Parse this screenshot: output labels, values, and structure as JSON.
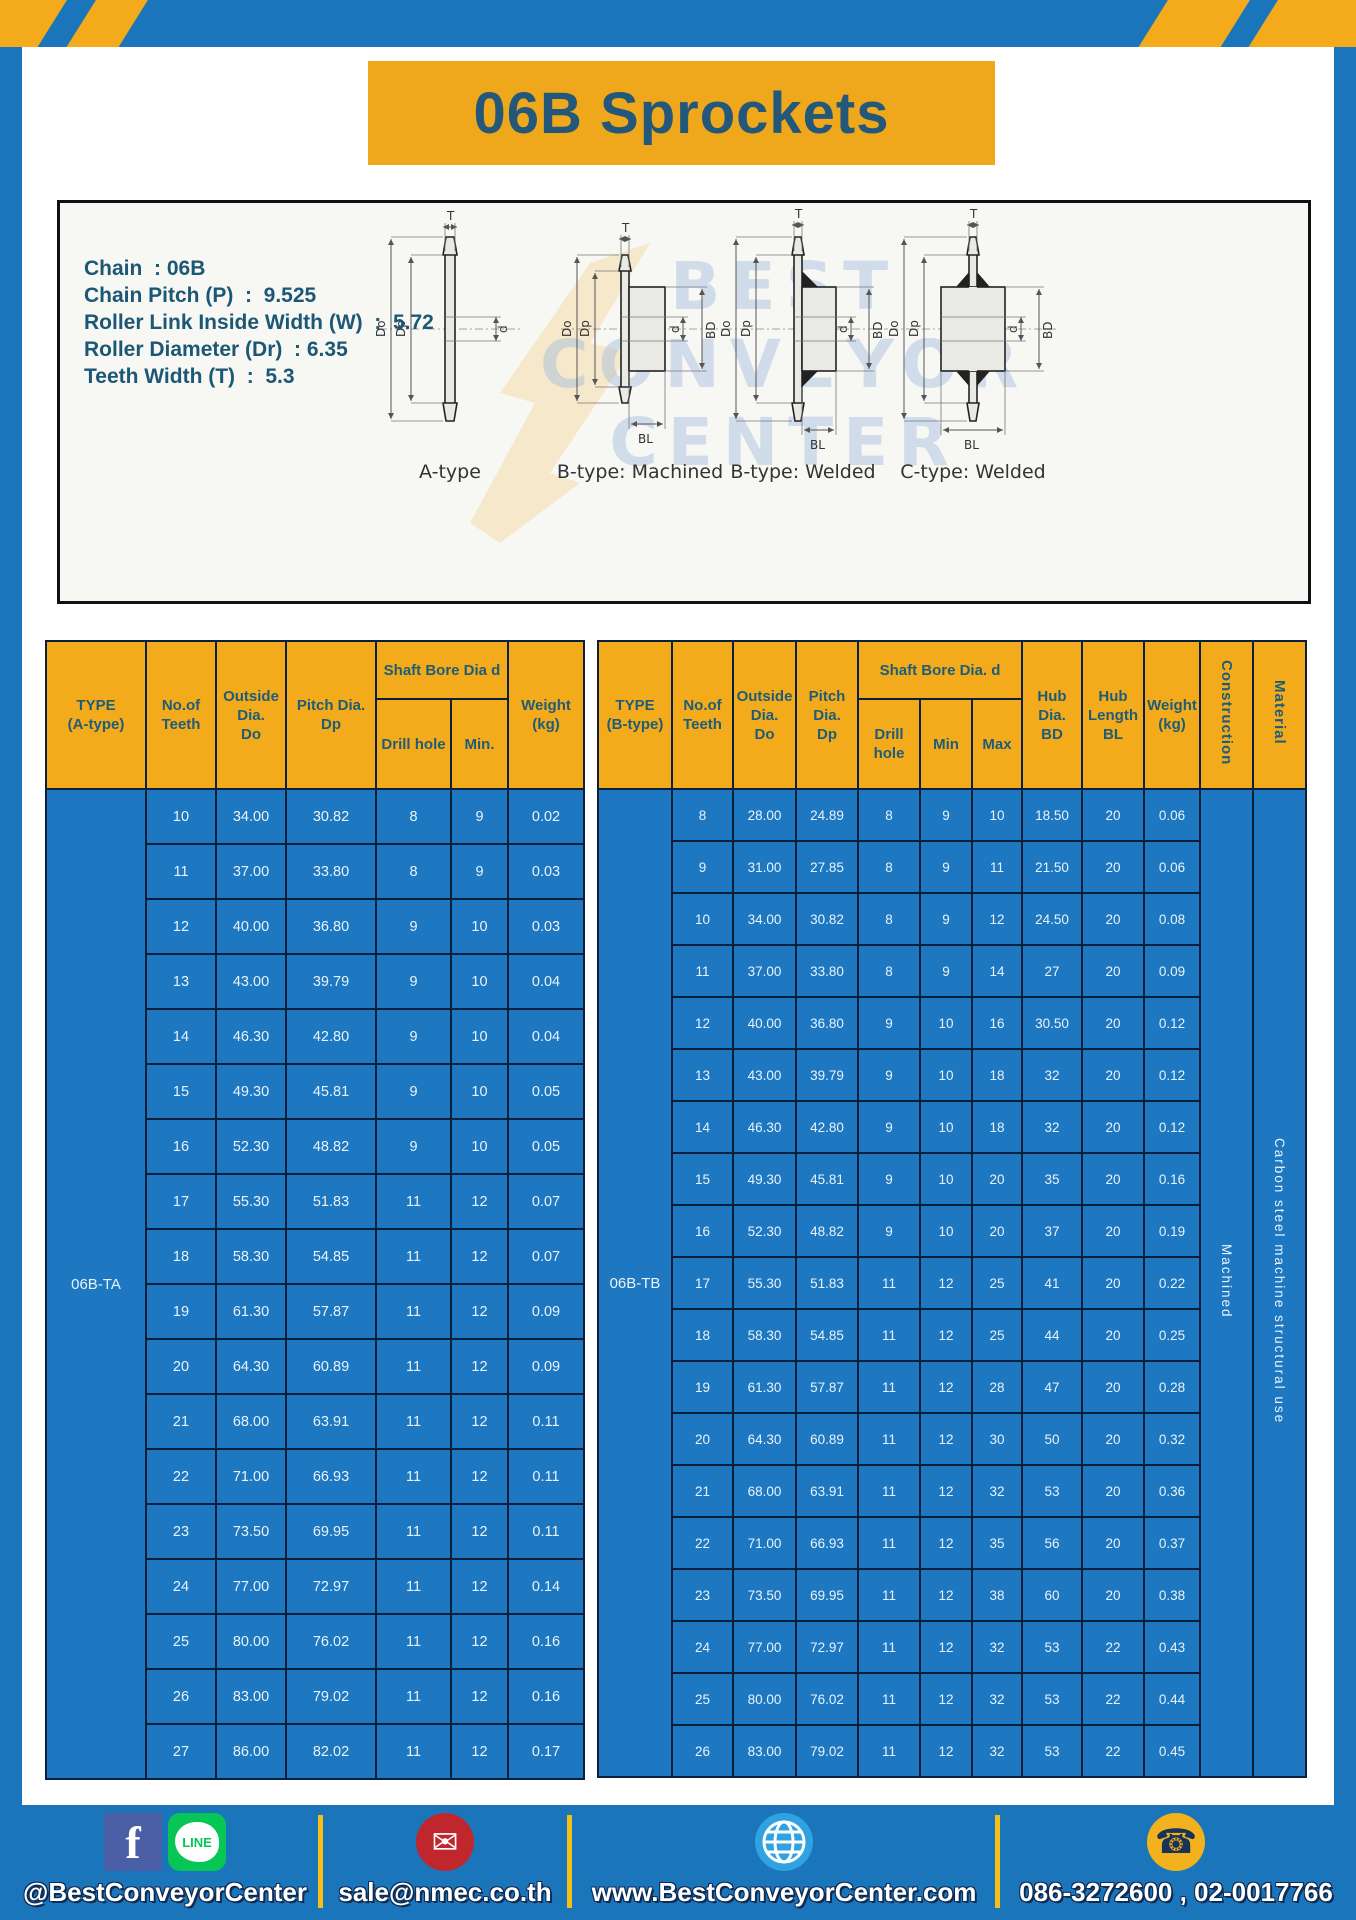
{
  "title": "06B Sprockets",
  "specs": [
    "Chain  : 06B",
    "Chain Pitch (P)  :  9.525",
    "Roller Link Inside Width (W)  :  5.72",
    "Roller Diameter (Dr)  : 6.35",
    "Teeth Width (T)  :  5.3"
  ],
  "watermark": {
    "lines": [
      "BEST",
      "CONVEYOR",
      "CENTER"
    ]
  },
  "dims": {
    "t": "T",
    "do": "Do",
    "dp": "Dp",
    "d": "d",
    "bd": "BD",
    "bl": "BL"
  },
  "drawings": [
    {
      "label": "A-type"
    },
    {
      "label": "B-type: Machined"
    },
    {
      "label": "B-type: Welded"
    },
    {
      "label": "C-type: Welded"
    }
  ],
  "table_a": {
    "type_label": "06B-TA",
    "headers": {
      "type": "TYPE\n(A-type)",
      "teeth": "No.of\nTeeth",
      "outside": "Outside\nDia.\nDo",
      "pitch": "Pitch Dia.\nDp",
      "shaft_bore": "Shaft Bore Dia d",
      "drill": "Drill hole",
      "min": "Min.",
      "weight": "Weight\n(kg)"
    },
    "rows": [
      [
        "10",
        "34.00",
        "30.82",
        "8",
        "9",
        "0.02"
      ],
      [
        "11",
        "37.00",
        "33.80",
        "8",
        "9",
        "0.03"
      ],
      [
        "12",
        "40.00",
        "36.80",
        "9",
        "10",
        "0.03"
      ],
      [
        "13",
        "43.00",
        "39.79",
        "9",
        "10",
        "0.04"
      ],
      [
        "14",
        "46.30",
        "42.80",
        "9",
        "10",
        "0.04"
      ],
      [
        "15",
        "49.30",
        "45.81",
        "9",
        "10",
        "0.05"
      ],
      [
        "16",
        "52.30",
        "48.82",
        "9",
        "10",
        "0.05"
      ],
      [
        "17",
        "55.30",
        "51.83",
        "11",
        "12",
        "0.07"
      ],
      [
        "18",
        "58.30",
        "54.85",
        "11",
        "12",
        "0.07"
      ],
      [
        "19",
        "61.30",
        "57.87",
        "11",
        "12",
        "0.09"
      ],
      [
        "20",
        "64.30",
        "60.89",
        "11",
        "12",
        "0.09"
      ],
      [
        "21",
        "68.00",
        "63.91",
        "11",
        "12",
        "0.11"
      ],
      [
        "22",
        "71.00",
        "66.93",
        "11",
        "12",
        "0.11"
      ],
      [
        "23",
        "73.50",
        "69.95",
        "11",
        "12",
        "0.11"
      ],
      [
        "24",
        "77.00",
        "72.97",
        "11",
        "12",
        "0.14"
      ],
      [
        "25",
        "80.00",
        "76.02",
        "11",
        "12",
        "0.16"
      ],
      [
        "26",
        "83.00",
        "79.02",
        "11",
        "12",
        "0.16"
      ],
      [
        "27",
        "86.00",
        "82.02",
        "11",
        "12",
        "0.17"
      ]
    ]
  },
  "table_b": {
    "type_label": "06B-TB",
    "headers": {
      "type": "TYPE\n(B-type)",
      "teeth": "No.of\nTeeth",
      "outside": "Outside\nDia.\nDo",
      "pitch": "Pitch\nDia.\nDp",
      "shaft_bore": "Shaft Bore Dia.  d",
      "drill": "Drill hole",
      "min": "Min",
      "max": "Max",
      "hub_dia": "Hub\nDia.\nBD",
      "hub_len": "Hub\nLength\nBL",
      "weight": "Weight\n(kg)",
      "construction": "Construction",
      "material": "Material"
    },
    "construction_value": "Machined",
    "material_value": "Carbon  steel  machine  structural  use",
    "rows": [
      [
        "8",
        "28.00",
        "24.89",
        "8",
        "9",
        "10",
        "18.50",
        "20",
        "0.06"
      ],
      [
        "9",
        "31.00",
        "27.85",
        "8",
        "9",
        "11",
        "21.50",
        "20",
        "0.06"
      ],
      [
        "10",
        "34.00",
        "30.82",
        "8",
        "9",
        "12",
        "24.50",
        "20",
        "0.08"
      ],
      [
        "11",
        "37.00",
        "33.80",
        "8",
        "9",
        "14",
        "27",
        "20",
        "0.09"
      ],
      [
        "12",
        "40.00",
        "36.80",
        "9",
        "10",
        "16",
        "30.50",
        "20",
        "0.12"
      ],
      [
        "13",
        "43.00",
        "39.79",
        "9",
        "10",
        "18",
        "32",
        "20",
        "0.12"
      ],
      [
        "14",
        "46.30",
        "42.80",
        "9",
        "10",
        "18",
        "32",
        "20",
        "0.12"
      ],
      [
        "15",
        "49.30",
        "45.81",
        "9",
        "10",
        "20",
        "35",
        "20",
        "0.16"
      ],
      [
        "16",
        "52.30",
        "48.82",
        "9",
        "10",
        "20",
        "37",
        "20",
        "0.19"
      ],
      [
        "17",
        "55.30",
        "51.83",
        "11",
        "12",
        "25",
        "41",
        "20",
        "0.22"
      ],
      [
        "18",
        "58.30",
        "54.85",
        "11",
        "12",
        "25",
        "44",
        "20",
        "0.25"
      ],
      [
        "19",
        "61.30",
        "57.87",
        "11",
        "12",
        "28",
        "47",
        "20",
        "0.28"
      ],
      [
        "20",
        "64.30",
        "60.89",
        "11",
        "12",
        "30",
        "50",
        "20",
        "0.32"
      ],
      [
        "21",
        "68.00",
        "63.91",
        "11",
        "12",
        "32",
        "53",
        "20",
        "0.36"
      ],
      [
        "22",
        "71.00",
        "66.93",
        "11",
        "12",
        "35",
        "56",
        "20",
        "0.37"
      ],
      [
        "23",
        "73.50",
        "69.95",
        "11",
        "12",
        "38",
        "60",
        "20",
        "0.38"
      ],
      [
        "24",
        "77.00",
        "72.97",
        "11",
        "12",
        "32",
        "53",
        "22",
        "0.43"
      ],
      [
        "25",
        "80.00",
        "76.02",
        "11",
        "12",
        "32",
        "53",
        "22",
        "0.44"
      ],
      [
        "26",
        "83.00",
        "79.02",
        "11",
        "12",
        "32",
        "53",
        "22",
        "0.45"
      ]
    ]
  },
  "footer": {
    "social_label": "@BestConveyorCenter",
    "line_label": "LINE",
    "fb_label": "f",
    "email": "sale@nmec.co.th",
    "website": "www.BestConveyorCenter.com",
    "phone": "086-3272600 , 02-0017766"
  },
  "colors": {
    "frame_blue": "#1b75bb",
    "table_blue": "#1d78c1",
    "header_yellow": "#f3ab1b",
    "title_yellow": "#efa81c",
    "teal_text": "#235e75",
    "border_navy": "#0c1f3d",
    "email_red": "#c0272d",
    "line_green": "#06c755",
    "facebook_blue": "#4a5fa5",
    "globe_blue": "#2fa3e0",
    "phone_yellow": "#f2b21d",
    "divider_yellow": "#f6bf17"
  }
}
